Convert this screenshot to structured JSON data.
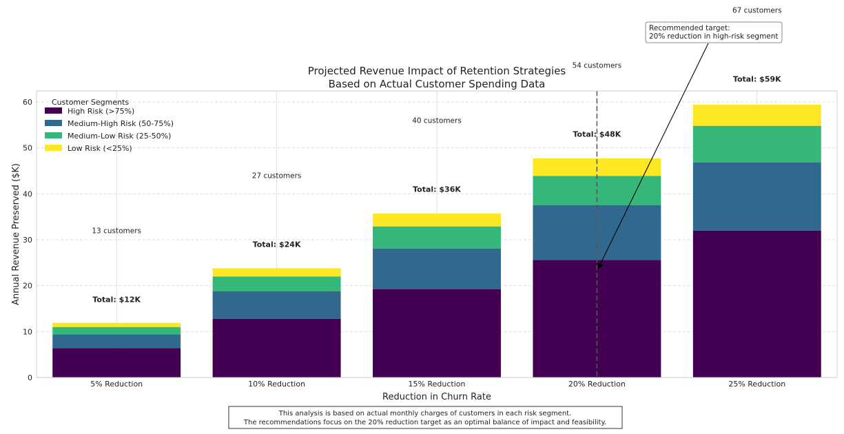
{
  "chart_data": {
    "type": "bar",
    "stacked": true,
    "title": "Projected Revenue Impact of Retention Strategies",
    "subtitle": "Based on Actual Customer Spending Data",
    "xlabel": "Reduction in Churn Rate",
    "ylabel": "Annual Revenue Preserved ($K)",
    "ylim": [
      0,
      62
    ],
    "yticks": [
      "0",
      "10",
      "20",
      "30",
      "40",
      "50",
      "60"
    ],
    "grid": true,
    "categories": [
      "5% Reduction",
      "10% Reduction",
      "15% Reduction",
      "20% Reduction",
      "25% Reduction"
    ],
    "series": [
      {
        "name": "High Risk (>75%)",
        "color": "#440154",
        "values": [
          6.4,
          12.8,
          19.2,
          25.6,
          32.0
        ]
      },
      {
        "name": "Medium-High Risk (50-75%)",
        "color": "#31688e",
        "values": [
          3.0,
          6.0,
          8.9,
          11.9,
          14.8
        ]
      },
      {
        "name": "Medium-Low Risk (25-50%)",
        "color": "#35b779",
        "values": [
          1.6,
          3.2,
          4.8,
          6.4,
          8.0
        ]
      },
      {
        "name": "Low Risk (<25%)",
        "color": "#fde725",
        "values": [
          0.9,
          1.8,
          2.8,
          3.8,
          4.6
        ]
      }
    ],
    "legend": {
      "title": "Customer Segments",
      "placement": "top-left"
    },
    "total_labels": [
      "Total: $12K",
      "Total: $24K",
      "Total: $36K",
      "Total: $48K",
      "Total: $59K"
    ],
    "total_label_y": [
      17,
      29,
      41,
      53,
      65
    ],
    "customer_labels": [
      "13 customers",
      "27 customers",
      "40 customers",
      "54 customers",
      "67 customers"
    ],
    "customer_label_y": [
      32,
      44,
      56,
      68,
      80
    ],
    "target_line": {
      "category_index": 3
    },
    "annotation": {
      "lines": [
        "Recommended target:",
        "20% reduction in high-risk segment"
      ],
      "arrow_target_y": 23.5
    },
    "footnote": [
      "This analysis is based on actual monthly charges of customers in each risk segment.",
      "The recommendations focus on the 20% reduction target as an optimal balance of impact and feasibility."
    ]
  }
}
